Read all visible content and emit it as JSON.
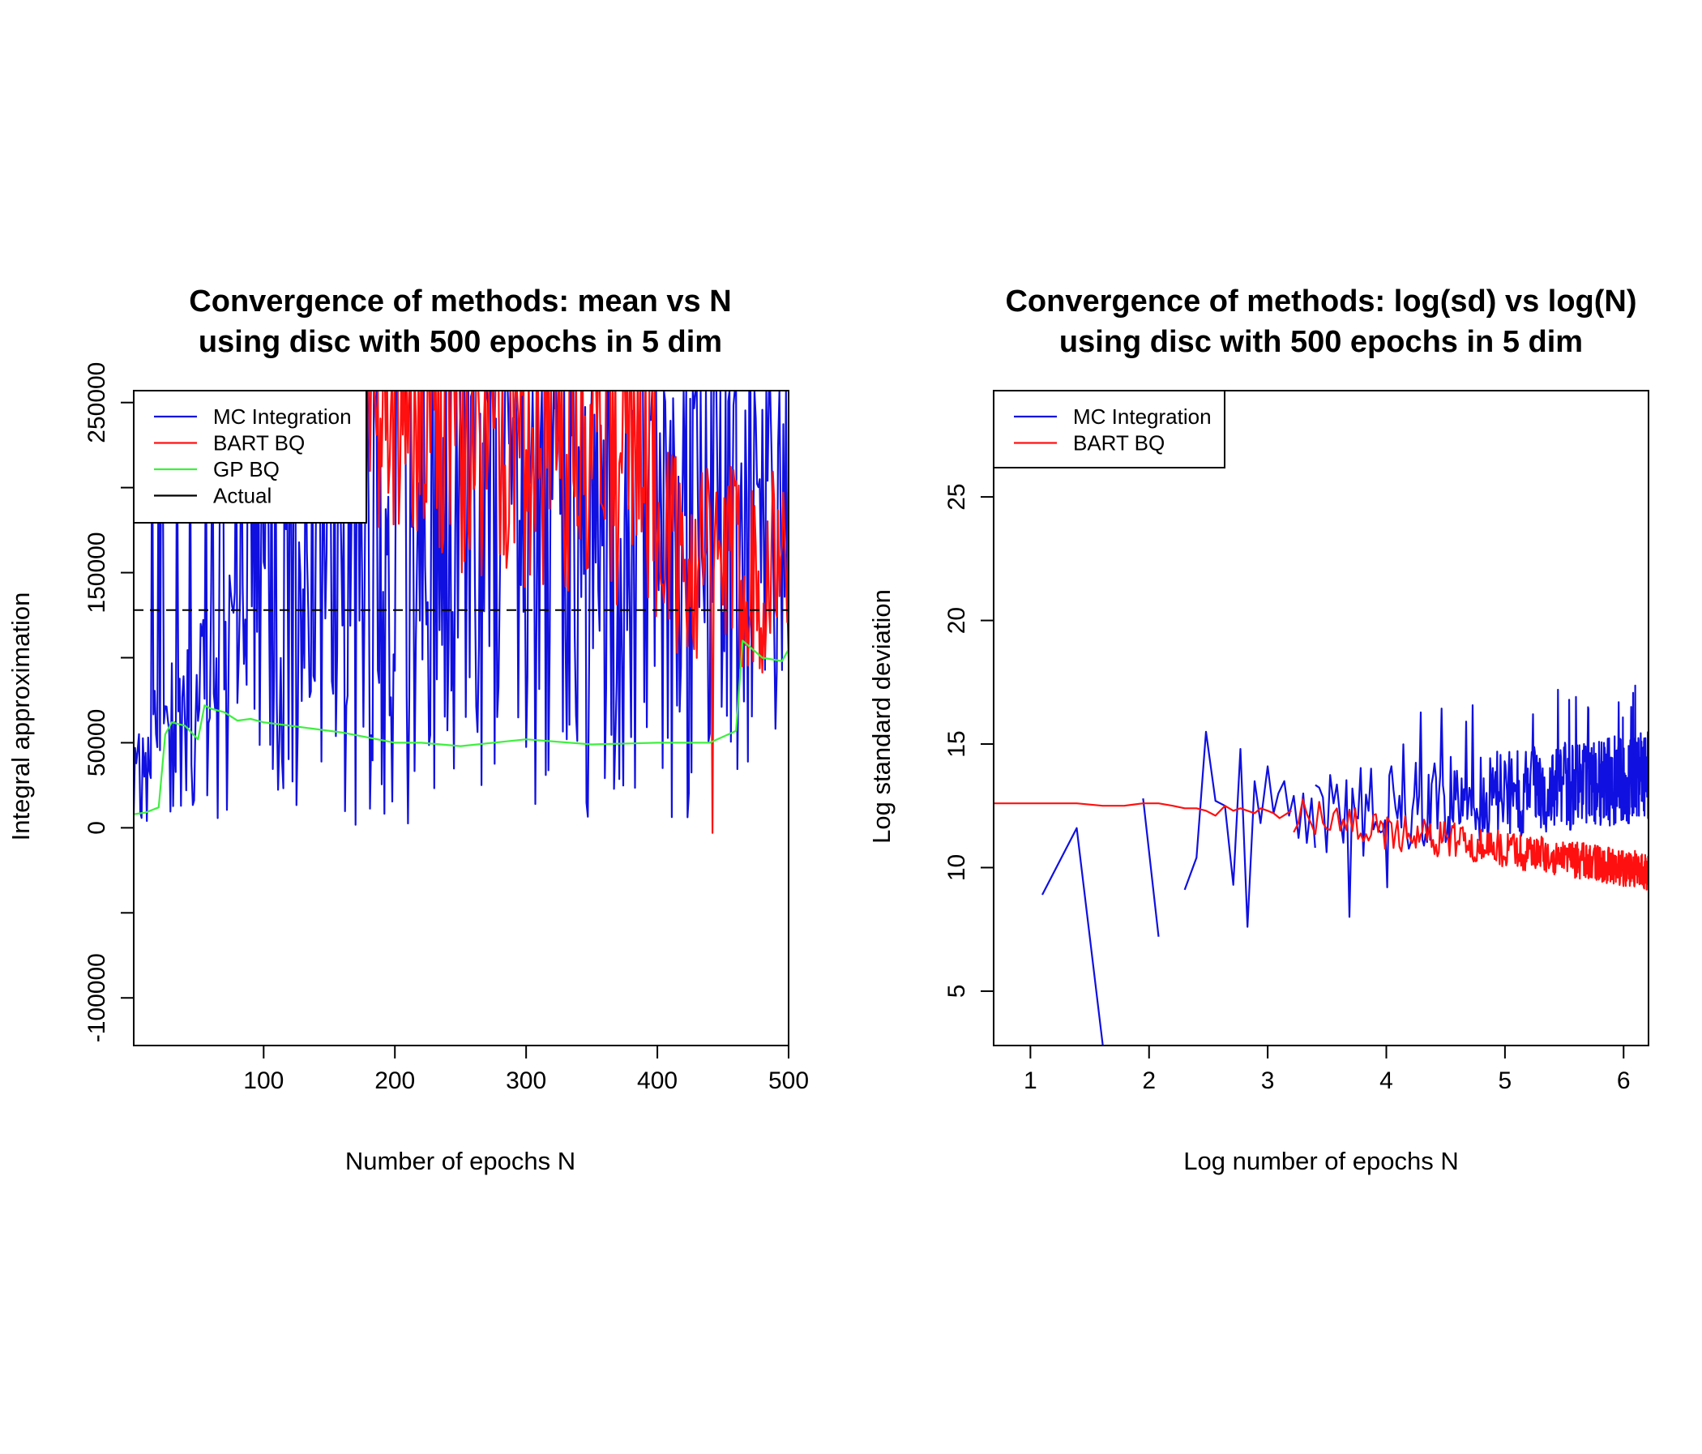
{
  "colors": {
    "mc": "#1010e0",
    "bart": "#ff1010",
    "gp": "#3ef03e",
    "actual": "#000000"
  },
  "chart_data": [
    {
      "type": "line",
      "title": [
        "Convergence of methods: mean vs N",
        "using disc with 500 epochs in 5 dim"
      ],
      "xlabel": "Number of epochs N",
      "ylabel": "Integral approximation",
      "xlim": [
        1,
        500
      ],
      "ylim": [
        -128000,
        257000
      ],
      "xticks": [
        100,
        200,
        300,
        400,
        500
      ],
      "xtick_labels": [
        "100",
        "200",
        "300",
        "400",
        "500"
      ],
      "yticks": [
        -100000,
        -50000,
        0,
        50000,
        100000,
        150000,
        200000,
        250000
      ],
      "ytick_labels": [
        "-100000",
        "",
        "0",
        "50000",
        "",
        "150000",
        "",
        "250000"
      ],
      "legend": {
        "placement": "top-left",
        "entries": [
          {
            "label": "MC Integration",
            "color": "mc",
            "dash": false
          },
          {
            "label": "BART BQ",
            "color": "bart",
            "dash": false
          },
          {
            "label": "GP BQ",
            "color": "gp",
            "dash": false
          },
          {
            "label": "Actual",
            "color": "actual",
            "dash": false
          }
        ]
      },
      "series": [
        {
          "name": "MC Integration",
          "color": "mc",
          "generator": "mc_mean",
          "count": 500,
          "range": [
            0,
            257000
          ]
        },
        {
          "name": "BART BQ",
          "color": "bart",
          "generator": "bart_mean",
          "x_range": [
            180,
            500
          ],
          "anchors_x": [
            180,
            250,
            350,
            420,
            480,
            500
          ],
          "anchors_y": [
            240000,
            210000,
            190000,
            160000,
            150000,
            170000
          ],
          "noise": 60000,
          "dip": {
            "x": 442,
            "y": -3000
          }
        },
        {
          "name": "GP BQ",
          "color": "gp",
          "x": [
            1,
            10,
            20,
            25,
            30,
            40,
            50,
            55,
            60,
            70,
            80,
            90,
            100,
            120,
            140,
            160,
            180,
            200,
            220,
            250,
            300,
            350,
            400,
            440,
            460,
            465,
            480,
            495,
            500
          ],
          "y": [
            8000,
            9000,
            12000,
            55000,
            62000,
            60000,
            52000,
            72000,
            70000,
            68000,
            63000,
            64000,
            62000,
            60000,
            58000,
            56000,
            53000,
            50000,
            50000,
            48000,
            52000,
            49000,
            50000,
            50000,
            57000,
            110000,
            100000,
            98000,
            105000
          ]
        },
        {
          "name": "Actual",
          "color": "actual",
          "dashed": true,
          "y": 128000
        }
      ]
    },
    {
      "type": "line",
      "title": [
        "Convergence of methods: log(sd) vs log(N)",
        "using disc with 500 epochs in 5 dim"
      ],
      "xlabel": "Log number of epochs N",
      "ylabel": "Log standard deviation",
      "xlim": [
        0.69,
        6.21
      ],
      "ylim": [
        2.8,
        29.3
      ],
      "xticks": [
        1,
        2,
        3,
        4,
        5,
        6
      ],
      "xtick_labels": [
        "1",
        "2",
        "3",
        "4",
        "5",
        "6"
      ],
      "yticks": [
        5,
        10,
        15,
        20,
        25
      ],
      "ytick_labels": [
        "5",
        "10",
        "15",
        "20",
        "25"
      ],
      "legend": {
        "placement": "top-left",
        "entries": [
          {
            "label": "MC Integration",
            "color": "mc",
            "dash": false
          },
          {
            "label": "BART BQ",
            "color": "bart",
            "dash": false
          }
        ]
      },
      "series": [
        {
          "name": "MC Integration",
          "color": "mc",
          "segments": [
            {
              "x": [
                1.1,
                1.39,
                1.61
              ],
              "y": [
                8.9,
                11.6,
                2.8
              ]
            },
            {
              "x": [
                1.95,
                2.08
              ],
              "y": [
                12.8,
                7.2
              ]
            },
            {
              "x": [
                2.3,
                2.4,
                2.48,
                2.56,
                2.64,
                2.71,
                2.77,
                2.83,
                2.89,
                2.94,
                3.0,
                3.05,
                3.09,
                3.14,
                3.18,
                3.22,
                3.26,
                3.3,
                3.33,
                3.37,
                3.4
              ],
              "y": [
                9.1,
                10.4,
                15.5,
                12.7,
                12.5,
                9.3,
                14.8,
                7.6,
                13.5,
                11.8,
                14.1,
                12.2,
                13.0,
                13.5,
                12.1,
                12.9,
                11.2,
                13.0,
                11.0,
                12.8,
                10.8
              ]
            }
          ],
          "generator": "mc_logsd",
          "x_range": [
            3.4,
            6.21
          ]
        },
        {
          "name": "BART BQ",
          "color": "bart",
          "x": [
            0.69,
            1.1,
            1.39,
            1.61,
            1.79,
            1.95,
            2.08,
            2.2,
            2.3,
            2.4,
            2.48,
            2.56,
            2.64,
            2.71,
            2.77,
            2.83,
            2.89,
            2.94,
            3.0,
            3.05,
            3.1,
            3.2
          ],
          "y": [
            12.6,
            12.6,
            12.6,
            12.5,
            12.5,
            12.6,
            12.6,
            12.5,
            12.4,
            12.4,
            12.3,
            12.1,
            12.5,
            12.3,
            12.4,
            12.3,
            12.2,
            12.4,
            12.3,
            12.2,
            12.0,
            12.3
          ],
          "generator": "bart_logsd",
          "x_range": [
            3.2,
            6.21
          ]
        }
      ]
    }
  ]
}
